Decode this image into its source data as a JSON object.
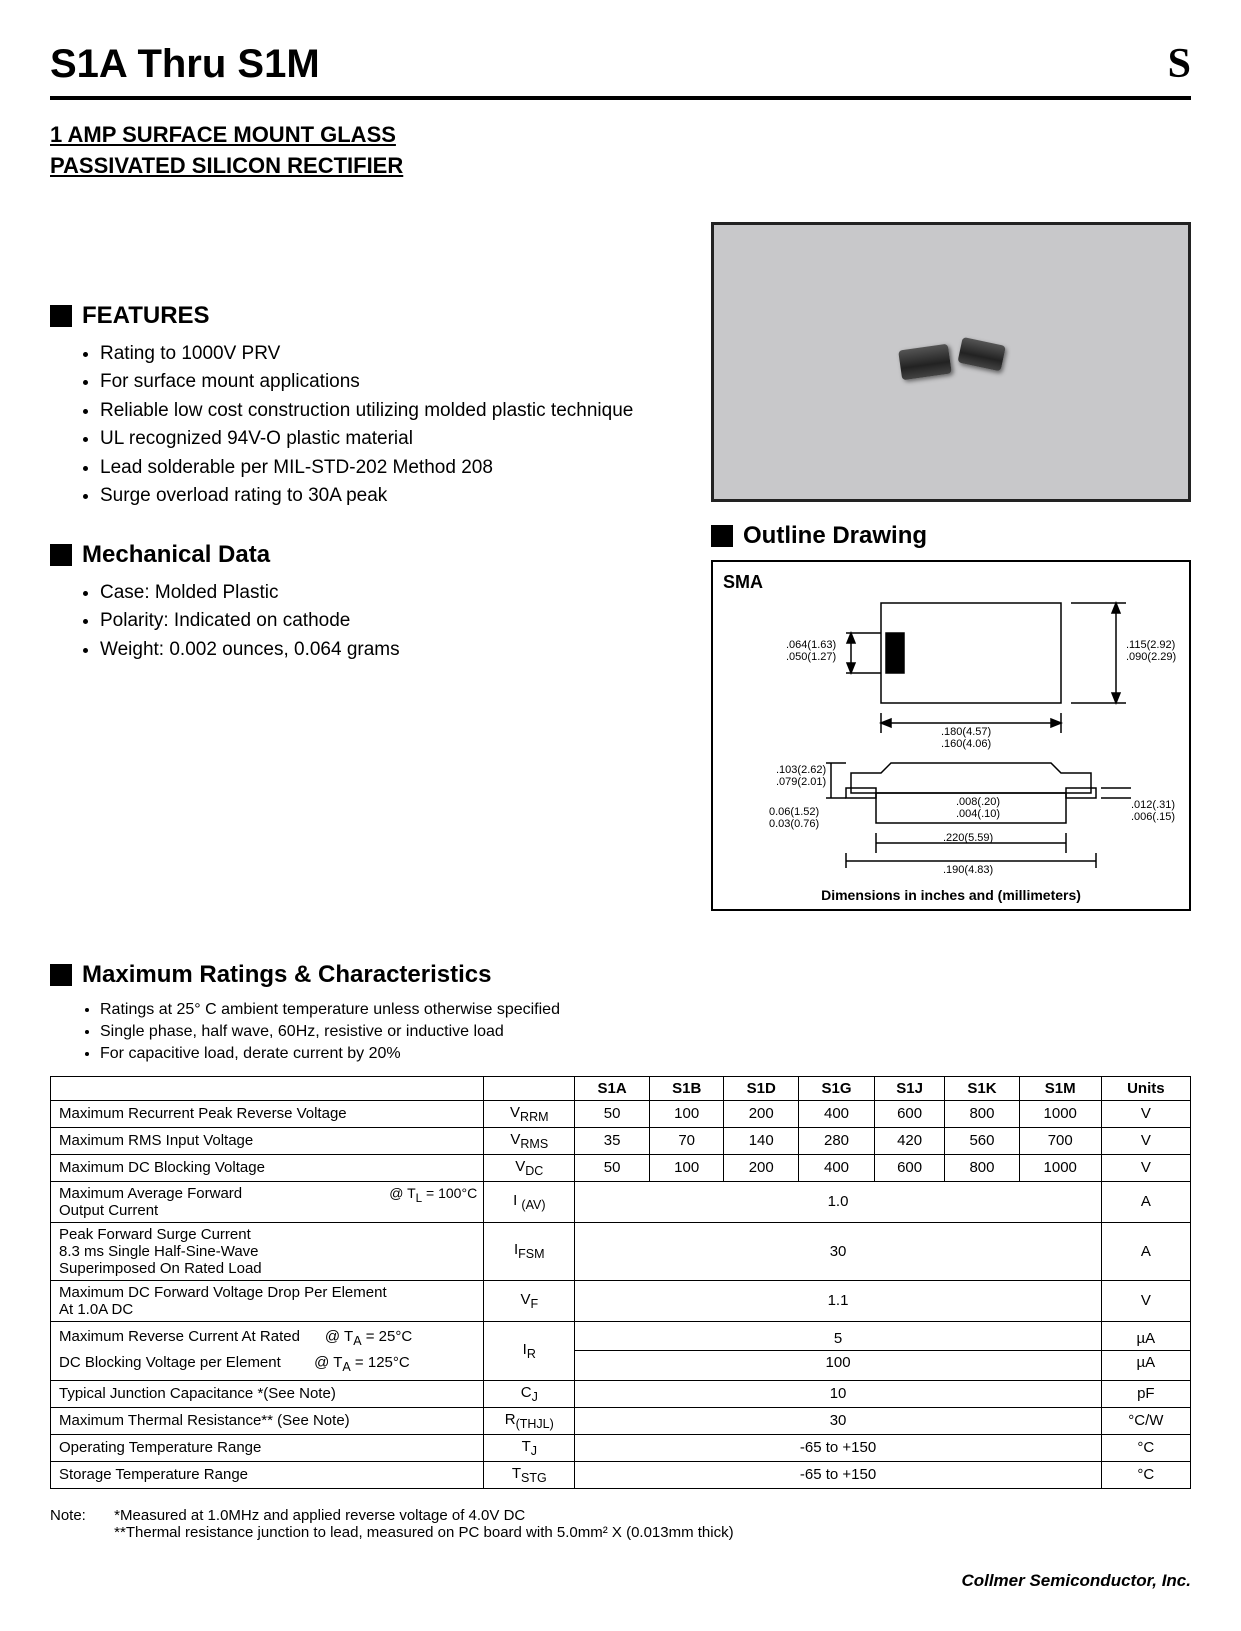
{
  "header": {
    "title": "S1A Thru S1M",
    "logo": "S"
  },
  "subtitle_line1": "1 AMP SURFACE MOUNT GLASS",
  "subtitle_line2": "PASSIVATED SILICON RECTIFIER",
  "features": {
    "heading": "FEATURES",
    "items": [
      "Rating to 1000V PRV",
      "For surface mount applications",
      "Reliable low cost construction utilizing molded plastic technique",
      "UL recognized 94V-O plastic material",
      "Lead solderable per MIL-STD-202 Method 208",
      "Surge overload rating to 30A peak"
    ]
  },
  "mechanical": {
    "heading": "Mechanical Data",
    "items": [
      "Case: Molded Plastic",
      "Polarity: Indicated on cathode",
      "Weight: 0.002 ounces, 0.064 grams"
    ]
  },
  "outline": {
    "heading": "Outline Drawing",
    "package_label": "SMA",
    "caption": "Dimensions in inches and (millimeters)",
    "dims": {
      "d1a": ".064(1.63)",
      "d1b": ".050(1.27)",
      "d2a": ".115(2.92)",
      "d2b": ".090(2.29)",
      "d3a": ".180(4.57)",
      "d3b": ".160(4.06)",
      "d4a": ".103(2.62)",
      "d4b": ".079(2.01)",
      "d5a": "0.06(1.52)",
      "d5b": "0.03(0.76)",
      "d6a": ".008(.20)",
      "d6b": ".004(.10)",
      "d7a": ".220(5.59)",
      "d7b": ".190(4.83)",
      "d8a": ".012(.31)",
      "d8b": ".006(.15)"
    }
  },
  "ratings": {
    "heading": "Maximum Ratings & Characteristics",
    "notes": [
      "Ratings at 25° C ambient temperature unless otherwise specified",
      "Single phase, half wave, 60Hz, resistive or inductive load",
      "For capacitive load, derate current by 20%"
    ],
    "columns": [
      "S1A",
      "S1B",
      "S1D",
      "S1G",
      "S1J",
      "S1K",
      "S1M",
      "Units"
    ],
    "rows": [
      {
        "param": "Maximum Recurrent Peak Reverse Voltage",
        "sym": "V<sub>RRM</sub>",
        "vals": [
          "50",
          "100",
          "200",
          "400",
          "600",
          "800",
          "1000"
        ],
        "unit": "V"
      },
      {
        "param": "Maximum RMS Input Voltage",
        "sym": "V<sub>RMS</sub>",
        "vals": [
          "35",
          "70",
          "140",
          "280",
          "420",
          "560",
          "700"
        ],
        "unit": "V"
      },
      {
        "param": "Maximum DC Blocking Voltage",
        "sym": "V<sub>DC</sub>",
        "vals": [
          "50",
          "100",
          "200",
          "400",
          "600",
          "800",
          "1000"
        ],
        "unit": "V"
      },
      {
        "param": "Maximum Average Forward<br>Output Current",
        "cond": "@ T<sub>L</sub> = 100°C",
        "sym": "I <sub>(AV)</sub>",
        "span": "1.0",
        "unit": "A"
      },
      {
        "param": "Peak Forward Surge Current<br>8.3 ms Single Half-Sine-Wave<br>Superimposed On Rated Load",
        "sym": "I<sub>FSM</sub>",
        "span": "30",
        "unit": "A"
      },
      {
        "param": "Maximum DC Forward Voltage Drop Per Element<br>At 1.0A DC",
        "sym": "V<sub>F</sub>",
        "span": "1.1",
        "unit": "V"
      },
      {
        "param": "Maximum Reverse Current At Rated &nbsp;&nbsp;&nbsp;&nbsp; @ T<sub>A</sub> = 25°C<br>DC Blocking Voltage per Element &nbsp;&nbsp;&nbsp;&nbsp;&nbsp;&nbsp; @ T<sub>A</sub> = 125°C",
        "sym": "I<sub>R</sub>",
        "span2": [
          "5",
          "100"
        ],
        "unit2": [
          "µA",
          "µA"
        ]
      },
      {
        "param": "Typical Junction Capacitance *(See Note)",
        "sym": "C<sub>J</sub>",
        "span": "10",
        "unit": "pF"
      },
      {
        "param": "Maximum Thermal Resistance** (See Note)",
        "sym": "R<sub>(THJL)</sub>",
        "span": "30",
        "unit": "°C/W"
      },
      {
        "param": "Operating Temperature Range",
        "sym": "T<sub>J</sub>",
        "span": "-65 to +150",
        "unit": "°C"
      },
      {
        "param": "Storage Temperature Range",
        "sym": "T<sub>STG</sub>",
        "span": "-65 to +150",
        "unit": "°C"
      }
    ]
  },
  "footnotes": {
    "label": "Note:",
    "n1": "*Measured at 1.0MHz and applied reverse voltage of 4.0V DC",
    "n2": "**Thermal resistance junction to lead, measured on PC board with 5.0mm² X (0.013mm thick)"
  },
  "footer": "Collmer Semiconductor, Inc."
}
